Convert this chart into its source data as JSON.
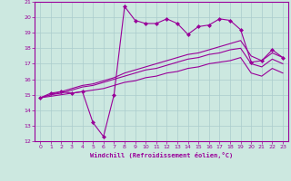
{
  "xlabel": "Windchill (Refroidissement éolien,°C)",
  "xlim": [
    -0.5,
    23.5
  ],
  "ylim": [
    12,
    21
  ],
  "xticks": [
    0,
    1,
    2,
    3,
    4,
    5,
    6,
    7,
    8,
    9,
    10,
    11,
    12,
    13,
    14,
    15,
    16,
    17,
    18,
    19,
    20,
    21,
    22,
    23
  ],
  "yticks": [
    12,
    13,
    14,
    15,
    16,
    17,
    18,
    19,
    20,
    21
  ],
  "background_color": "#cce8e0",
  "grid_color": "#aacccc",
  "line_color": "#990099",
  "series": [
    [
      14.8,
      15.1,
      15.2,
      15.1,
      15.2,
      13.2,
      12.3,
      15.0,
      20.7,
      19.8,
      19.6,
      19.6,
      19.9,
      19.6,
      18.9,
      19.4,
      19.5,
      19.9,
      19.8,
      19.2,
      17.1,
      17.2,
      17.9,
      17.4
    ],
    [
      14.8,
      15.0,
      15.2,
      15.4,
      15.6,
      15.7,
      15.9,
      16.1,
      16.4,
      16.6,
      16.8,
      17.0,
      17.2,
      17.4,
      17.6,
      17.7,
      17.9,
      18.1,
      18.3,
      18.5,
      17.5,
      17.2,
      17.7,
      17.4
    ],
    [
      14.8,
      15.0,
      15.1,
      15.3,
      15.5,
      15.6,
      15.8,
      16.0,
      16.2,
      16.4,
      16.6,
      16.7,
      16.9,
      17.1,
      17.3,
      17.4,
      17.6,
      17.7,
      17.9,
      18.0,
      17.0,
      16.8,
      17.3,
      17.0
    ],
    [
      14.8,
      14.9,
      15.0,
      15.1,
      15.2,
      15.3,
      15.4,
      15.6,
      15.8,
      15.9,
      16.1,
      16.2,
      16.4,
      16.5,
      16.7,
      16.8,
      17.0,
      17.1,
      17.2,
      17.4,
      16.4,
      16.2,
      16.7,
      16.4
    ]
  ]
}
